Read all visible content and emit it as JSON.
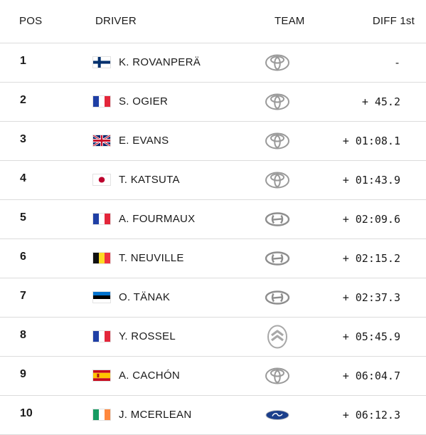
{
  "header": {
    "pos": "POS",
    "driver": "DRIVER",
    "team": "TEAM",
    "diff": "DIFF 1st"
  },
  "rows": [
    {
      "pos": "1",
      "driver": "K. ROVANPERÄ",
      "flag": "finland-flag-icon",
      "team_logo": "toyota-logo-icon",
      "diff": "-"
    },
    {
      "pos": "2",
      "driver": "S. OGIER",
      "flag": "france-flag-icon",
      "team_logo": "toyota-logo-icon",
      "diff": "+ 45.2"
    },
    {
      "pos": "3",
      "driver": "E. EVANS",
      "flag": "uk-flag-icon",
      "team_logo": "toyota-logo-icon",
      "diff": "+ 01:08.1"
    },
    {
      "pos": "4",
      "driver": "T. KATSUTA",
      "flag": "japan-flag-icon",
      "team_logo": "toyota-logo-icon",
      "diff": "+ 01:43.9"
    },
    {
      "pos": "5",
      "driver": "A. FOURMAUX",
      "flag": "france-flag-icon",
      "team_logo": "hyundai-logo-icon",
      "diff": "+ 02:09.6"
    },
    {
      "pos": "6",
      "driver": "T. NEUVILLE",
      "flag": "belgium-flag-icon",
      "team_logo": "hyundai-logo-icon",
      "diff": "+ 02:15.2"
    },
    {
      "pos": "7",
      "driver": "O. TÄNAK",
      "flag": "estonia-flag-icon",
      "team_logo": "hyundai-logo-icon",
      "diff": "+ 02:37.3"
    },
    {
      "pos": "8",
      "driver": "Y. ROSSEL",
      "flag": "france-flag-icon",
      "team_logo": "citroen-logo-icon",
      "diff": "+ 05:45.9"
    },
    {
      "pos": "9",
      "driver": "A. CACHÓN",
      "flag": "spain-flag-icon",
      "team_logo": "toyota-logo-icon",
      "diff": "+ 06:04.7"
    },
    {
      "pos": "10",
      "driver": "J. MCERLEAN",
      "flag": "ireland-flag-icon",
      "team_logo": "ford-logo-icon",
      "diff": "+ 06:12.3"
    }
  ],
  "colors": {
    "divider": "#dcdcdc",
    "text": "#1a1a1a",
    "ford_blue": "#1b3f8b"
  }
}
